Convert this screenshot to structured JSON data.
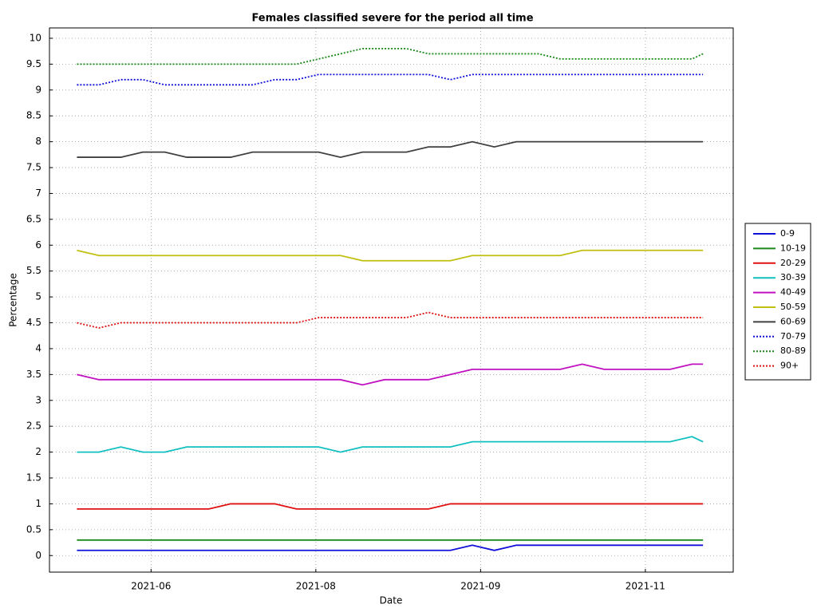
{
  "chart_data": {
    "type": "line",
    "title": "Females classified severe for the period all time",
    "xlabel": "Date",
    "ylabel": "Percentage",
    "x": [
      125,
      133,
      141,
      149,
      157,
      165,
      173,
      181,
      189,
      197,
      205,
      213,
      221,
      229,
      237,
      245,
      253,
      261,
      269,
      277,
      285,
      293,
      301,
      309,
      317,
      325,
      333,
      341,
      349,
      353
    ],
    "xlim": [
      115,
      364
    ],
    "xticks": [
      {
        "value": 152,
        "label": "2021-06"
      },
      {
        "value": 212,
        "label": "2021-08"
      },
      {
        "value": 272,
        "label": "2021-09"
      },
      {
        "value": 332,
        "label": "2021-11"
      }
    ],
    "ylim": [
      -0.32,
      10.2
    ],
    "yticks": [
      0,
      0.5,
      1,
      1.5,
      2,
      2.5,
      3,
      3.5,
      4,
      4.5,
      5,
      5.5,
      6,
      6.5,
      7,
      7.5,
      8,
      8.5,
      9,
      9.5,
      10
    ],
    "grid": true,
    "legend": "right",
    "series": [
      {
        "name": "0-9",
        "color": "#1010d8",
        "linestyle": "solid",
        "values": [
          0.1,
          0.1,
          0.1,
          0.1,
          0.1,
          0.1,
          0.1,
          0.1,
          0.1,
          0.1,
          0.1,
          0.1,
          0.1,
          0.1,
          0.1,
          0.1,
          0.1,
          0.1,
          0.2,
          0.1,
          0.2,
          0.2,
          0.2,
          0.2,
          0.2,
          0.2,
          0.2,
          0.2,
          0.2,
          0.2
        ]
      },
      {
        "name": "10-19",
        "color": "#1a8a1a",
        "linestyle": "solid",
        "values": [
          0.3,
          0.3,
          0.3,
          0.3,
          0.3,
          0.3,
          0.3,
          0.3,
          0.3,
          0.3,
          0.3,
          0.3,
          0.3,
          0.3,
          0.3,
          0.3,
          0.3,
          0.3,
          0.3,
          0.3,
          0.3,
          0.3,
          0.3,
          0.3,
          0.3,
          0.3,
          0.3,
          0.3,
          0.3,
          0.3
        ]
      },
      {
        "name": "20-29",
        "color": "#e01010",
        "linestyle": "solid",
        "values": [
          0.9,
          0.9,
          0.9,
          0.9,
          0.9,
          0.9,
          0.9,
          1.0,
          1.0,
          1.0,
          0.9,
          0.9,
          0.9,
          0.9,
          0.9,
          0.9,
          0.9,
          1.0,
          1.0,
          1.0,
          1.0,
          1.0,
          1.0,
          1.0,
          1.0,
          1.0,
          1.0,
          1.0,
          1.0,
          1.0
        ]
      },
      {
        "name": "30-39",
        "color": "#10c0c0",
        "linestyle": "solid",
        "values": [
          2.0,
          2.0,
          2.1,
          2.0,
          2.0,
          2.1,
          2.1,
          2.1,
          2.1,
          2.1,
          2.1,
          2.1,
          2.0,
          2.1,
          2.1,
          2.1,
          2.1,
          2.1,
          2.2,
          2.2,
          2.2,
          2.2,
          2.2,
          2.2,
          2.2,
          2.2,
          2.2,
          2.2,
          2.3,
          2.2
        ]
      },
      {
        "name": "40-49",
        "color": "#c010c0",
        "linestyle": "solid",
        "values": [
          3.5,
          3.4,
          3.4,
          3.4,
          3.4,
          3.4,
          3.4,
          3.4,
          3.4,
          3.4,
          3.4,
          3.4,
          3.4,
          3.3,
          3.4,
          3.4,
          3.4,
          3.5,
          3.6,
          3.6,
          3.6,
          3.6,
          3.6,
          3.7,
          3.6,
          3.6,
          3.6,
          3.6,
          3.7,
          3.7
        ]
      },
      {
        "name": "50-59",
        "color": "#c0c010",
        "linestyle": "solid",
        "values": [
          5.9,
          5.8,
          5.8,
          5.8,
          5.8,
          5.8,
          5.8,
          5.8,
          5.8,
          5.8,
          5.8,
          5.8,
          5.8,
          5.7,
          5.7,
          5.7,
          5.7,
          5.7,
          5.8,
          5.8,
          5.8,
          5.8,
          5.8,
          5.9,
          5.9,
          5.9,
          5.9,
          5.9,
          5.9,
          5.9
        ]
      },
      {
        "name": "60-69",
        "color": "#404040",
        "linestyle": "solid",
        "values": [
          7.7,
          7.7,
          7.7,
          7.8,
          7.8,
          7.7,
          7.7,
          7.7,
          7.8,
          7.8,
          7.8,
          7.8,
          7.7,
          7.8,
          7.8,
          7.8,
          7.9,
          7.9,
          8.0,
          7.9,
          8.0,
          8.0,
          8.0,
          8.0,
          8.0,
          8.0,
          8.0,
          8.0,
          8.0,
          8.0
        ]
      },
      {
        "name": "70-79",
        "color": "#1010d8",
        "linestyle": "dotted",
        "values": [
          9.1,
          9.1,
          9.2,
          9.2,
          9.1,
          9.1,
          9.1,
          9.1,
          9.1,
          9.2,
          9.2,
          9.3,
          9.3,
          9.3,
          9.3,
          9.3,
          9.3,
          9.2,
          9.3,
          9.3,
          9.3,
          9.3,
          9.3,
          9.3,
          9.3,
          9.3,
          9.3,
          9.3,
          9.3,
          9.3
        ]
      },
      {
        "name": "80-89",
        "color": "#1a8a1a",
        "linestyle": "dotted",
        "values": [
          9.5,
          9.5,
          9.5,
          9.5,
          9.5,
          9.5,
          9.5,
          9.5,
          9.5,
          9.5,
          9.5,
          9.6,
          9.7,
          9.8,
          9.8,
          9.8,
          9.7,
          9.7,
          9.7,
          9.7,
          9.7,
          9.7,
          9.6,
          9.6,
          9.6,
          9.6,
          9.6,
          9.6,
          9.6,
          9.7
        ]
      },
      {
        "name": "90+",
        "color": "#e01010",
        "linestyle": "dotted",
        "values": [
          4.5,
          4.4,
          4.5,
          4.5,
          4.5,
          4.5,
          4.5,
          4.5,
          4.5,
          4.5,
          4.5,
          4.6,
          4.6,
          4.6,
          4.6,
          4.6,
          4.7,
          4.6,
          4.6,
          4.6,
          4.6,
          4.6,
          4.6,
          4.6,
          4.6,
          4.6,
          4.6,
          4.6,
          4.6,
          4.6
        ]
      }
    ]
  }
}
